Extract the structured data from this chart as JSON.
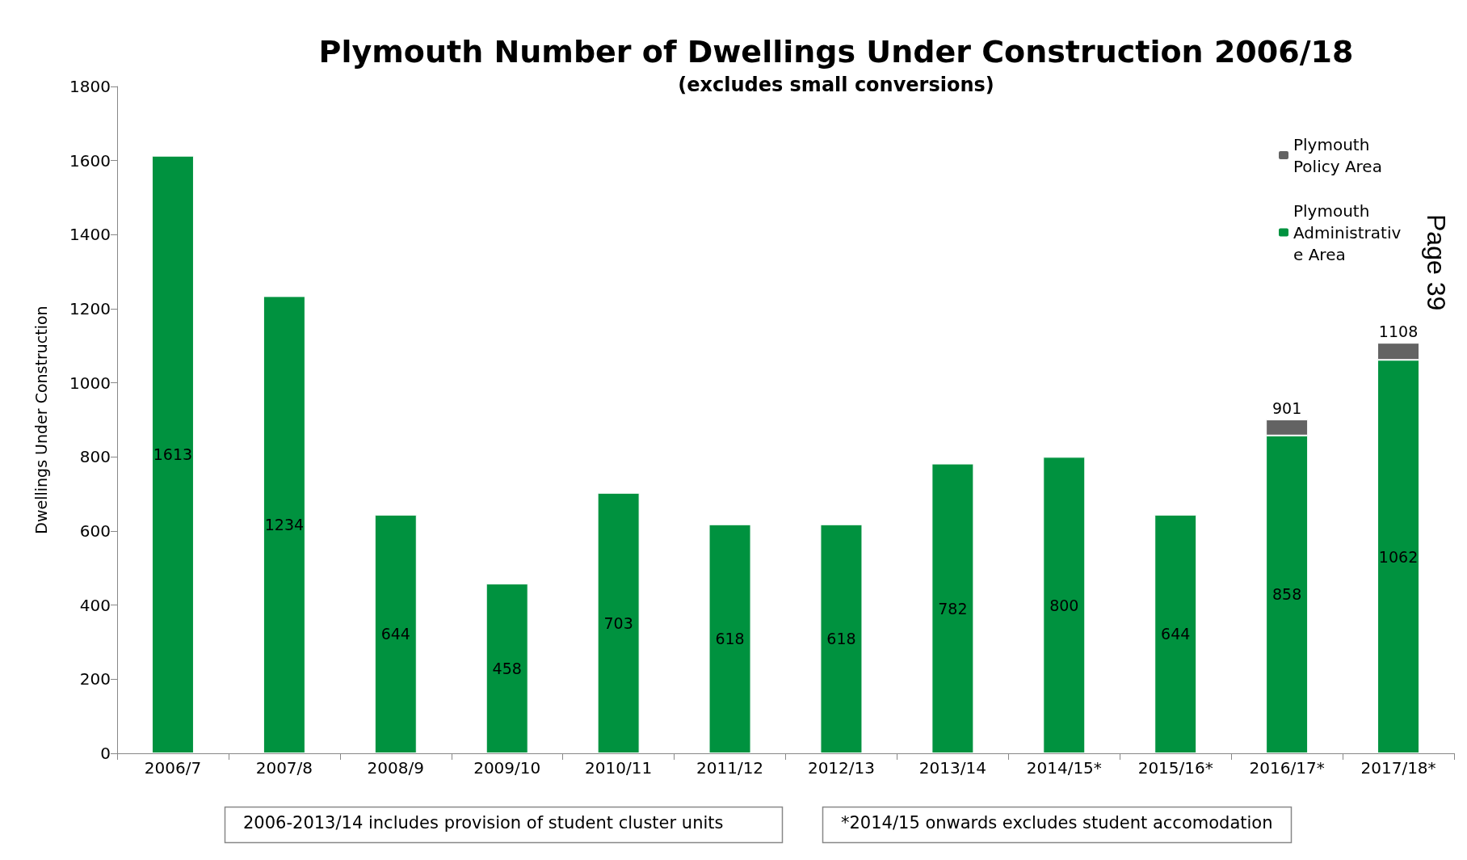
{
  "chart_data": {
    "type": "bar",
    "title": "Plymouth Number of Dwellings Under Construction 2006/18",
    "subtitle": "(excludes small conversions)",
    "ylabel": "Dwellings Under Construction",
    "categories": [
      "2006/7",
      "2007/8",
      "2008/9",
      "2009/10",
      "2010/11",
      "2011/12",
      "2012/13",
      "2013/14",
      "2014/15*",
      "2015/16*",
      "2016/17*",
      "2017/18*"
    ],
    "series": [
      {
        "name": "Plymouth Administrative Area",
        "color": "#00923f",
        "values": [
          1613,
          1234,
          644,
          458,
          703,
          618,
          618,
          782,
          800,
          644,
          858,
          1062
        ],
        "value_labels": [
          "1613",
          "1234",
          "644",
          "458",
          "703",
          "618",
          "618",
          "782",
          "800",
          "644",
          "858",
          "1062"
        ]
      },
      {
        "name": "Plymouth Policy Area",
        "color": "#636363",
        "values": [
          null,
          null,
          null,
          null,
          null,
          null,
          null,
          null,
          null,
          null,
          43,
          46
        ]
      }
    ],
    "totals": [
      null,
      null,
      null,
      null,
      null,
      null,
      null,
      null,
      null,
      null,
      "901",
      "1108"
    ],
    "stacked": true,
    "ylim": [
      0,
      1800
    ],
    "yticks": [
      0,
      200,
      400,
      600,
      800,
      1000,
      1200,
      1400,
      1600,
      1800
    ],
    "grid": false,
    "legend": "top right",
    "annotations": [
      "2006-2013/14 includes provision of student cluster units",
      "*2014/15 onwards excludes student accomodation",
      "Page 39"
    ]
  }
}
